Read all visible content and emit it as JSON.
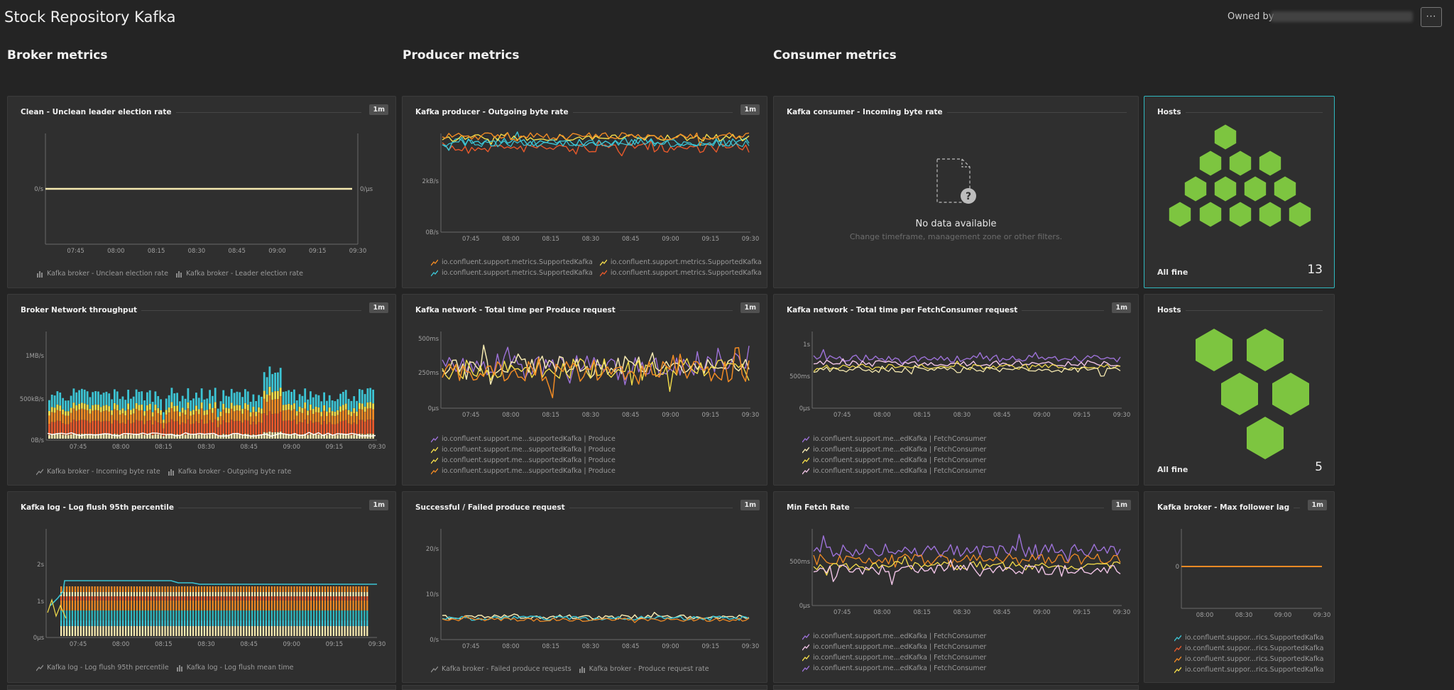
{
  "page": {
    "title": "Stock Repository Kafka",
    "owned_by_label": "Owned by",
    "more_label": "···"
  },
  "sections": [
    "Broker metrics",
    "Producer metrics",
    "Consumer metrics"
  ],
  "tiles": {
    "t1": {
      "title": "Clean - Unclean leader election rate",
      "badge": "1m",
      "y_left": [
        "0/s"
      ],
      "y_right": [
        "0/μs"
      ],
      "x": [
        "07:45",
        "08:00",
        "08:15",
        "08:30",
        "08:45",
        "09:00",
        "09:15",
        "09:30"
      ],
      "legend": [
        [
          "Kafka broker - Unclean election rate",
          "Kafka broker - Leader election rate"
        ]
      ]
    },
    "t2": {
      "title": "Kafka producer - Outgoing byte rate",
      "badge": "1m",
      "y_left": [
        "2kB/s",
        "0B/s"
      ],
      "x": [
        "07:45",
        "08:00",
        "08:15",
        "08:30",
        "08:45",
        "09:00",
        "09:15",
        "09:30"
      ],
      "legend": [
        [
          "io.confluent.support.metrics.SupportedKafka",
          "io.confluent.support.metrics.SupportedKafka"
        ],
        [
          "io.confluent.support.metrics.SupportedKafka",
          "io.confluent.support.metrics.SupportedKafka"
        ]
      ]
    },
    "t3": {
      "title": "Kafka consumer - Incoming byte rate",
      "nodata": "No data available",
      "nodata_hint": "Change timeframe, management zone or other filters."
    },
    "t4": {
      "title": "Hosts",
      "status": "All fine",
      "count": "13"
    },
    "t5": {
      "title": "Broker Network throughput",
      "badge": "1m",
      "y_left": [
        "1MB/s",
        "500kB/s",
        "0B/s"
      ],
      "x": [
        "07:45",
        "08:00",
        "08:15",
        "08:30",
        "08:45",
        "09:00",
        "09:15",
        "09:30"
      ],
      "legend": [
        [
          "Kafka broker - Incoming byte rate",
          "Kafka broker - Outgoing byte rate"
        ]
      ]
    },
    "t6": {
      "title": "Kafka network - Total time per Produce request",
      "badge": "1m",
      "y_left": [
        "500ms",
        "250ms",
        "0μs"
      ],
      "x": [
        "07:45",
        "08:00",
        "08:15",
        "08:30",
        "08:45",
        "09:00",
        "09:15",
        "09:30"
      ],
      "legend": [
        [
          "io.confluent.support.me...supportedKafka | Produce"
        ],
        [
          "io.confluent.support.me...supportedKafka | Produce"
        ],
        [
          "io.confluent.support.me...supportedKafka | Produce"
        ],
        [
          "io.confluent.support.me...supportedKafka | Produce"
        ]
      ]
    },
    "t7": {
      "title": "Kafka network - Total time per FetchConsumer request",
      "badge": "1m",
      "y_left": [
        "1s",
        "500ms",
        "0μs"
      ],
      "x": [
        "07:45",
        "08:00",
        "08:15",
        "08:30",
        "08:45",
        "09:00",
        "09:15",
        "09:30"
      ],
      "legend": [
        [
          "io.confluent.support.me...edKafka | FetchConsumer"
        ],
        [
          "io.confluent.support.me...edKafka | FetchConsumer"
        ],
        [
          "io.confluent.support.me...edKafka | FetchConsumer"
        ],
        [
          "io.confluent.support.me...edKafka | FetchConsumer"
        ]
      ]
    },
    "t8": {
      "title": "Hosts",
      "status": "All fine",
      "count": "5"
    },
    "t9": {
      "title": "Kafka log - Log flush 95th percentile",
      "badge": "1m",
      "y_left": [
        "2s",
        "1s",
        "0μs"
      ],
      "x": [
        "07:45",
        "08:00",
        "08:15",
        "08:30",
        "08:45",
        "09:00",
        "09:15",
        "09:30"
      ],
      "legend": [
        [
          "Kafka log - Log flush 95th percentile",
          "Kafka log - Log flush mean time"
        ]
      ]
    },
    "t10": {
      "title": "Successful / Failed produce request",
      "badge": "1m",
      "y_left": [
        "20/s",
        "10/s",
        "0/s"
      ],
      "x": [
        "07:45",
        "08:00",
        "08:15",
        "08:30",
        "08:45",
        "09:00",
        "09:15",
        "09:30"
      ],
      "legend": [
        [
          "Kafka broker - Failed produce requests",
          "Kafka broker - Produce request rate"
        ]
      ]
    },
    "t11": {
      "title": "Min Fetch Rate",
      "badge": "1m",
      "y_left": [
        "500ms",
        "0μs"
      ],
      "x": [
        "07:45",
        "08:00",
        "08:15",
        "08:30",
        "08:45",
        "09:00",
        "09:15",
        "09:30"
      ],
      "legend": [
        [
          "io.confluent.support.me...edKafka | FetchConsumer"
        ],
        [
          "io.confluent.support.me...edKafka | FetchConsumer"
        ],
        [
          "io.confluent.support.me...edKafka | FetchConsumer"
        ],
        [
          "io.confluent.support.me...edKafka | FetchConsumer"
        ]
      ]
    },
    "t12": {
      "title": "Kafka broker - Max follower lag",
      "badge": "1m",
      "y_left": [
        "0"
      ],
      "x": [
        "08:00",
        "08:30",
        "09:00",
        "09:30"
      ],
      "legend": [
        [
          "io.confluent.suppor...rics.SupportedKafka"
        ],
        [
          "io.confluent.suppor...rics.SupportedKafka"
        ],
        [
          "io.confluent.suppor...rics.SupportedKafka"
        ],
        [
          "io.confluent.suppor...rics.SupportedKafka"
        ]
      ]
    }
  },
  "colors": {
    "cyan": "#3cc4d4",
    "orange": "#f08a24",
    "yellow": "#f4dd4a",
    "red": "#e8592b",
    "purple": "#9d72d8",
    "pink": "#f0c4e6",
    "cream": "#f5e9b0",
    "green": "#7dc540",
    "teal": "#2fb8bf"
  },
  "chart_data": [
    {
      "type": "line",
      "title": "Clean - Unclean leader election rate",
      "x": [
        "07:45",
        "08:00",
        "08:15",
        "08:30",
        "08:45",
        "09:00",
        "09:15",
        "09:30"
      ],
      "series": [
        {
          "name": "Kafka broker - Unclean election rate",
          "values": [
            0,
            0,
            0,
            0,
            0,
            0,
            0,
            0
          ]
        },
        {
          "name": "Kafka broker - Leader election rate",
          "values": [
            0,
            0,
            0,
            0,
            0,
            0,
            0,
            0
          ]
        }
      ]
    },
    {
      "type": "line",
      "title": "Kafka producer - Outgoing byte rate",
      "ylabel": "",
      "ylim": [
        0,
        3.3
      ],
      "x": [
        "07:45",
        "08:00",
        "08:15",
        "08:30",
        "08:45",
        "09:00",
        "09:15",
        "09:30"
      ],
      "series": [
        {
          "name": "io.confluent.support.metrics.SupportedKafka",
          "values": [
            3.0,
            3.0,
            3.0,
            3.0,
            3.0,
            3.0,
            3.0,
            3.0
          ]
        },
        {
          "name": "io.confluent.support.metrics.SupportedKafka",
          "values": [
            2.9,
            2.9,
            2.9,
            2.9,
            2.9,
            2.9,
            2.9,
            2.9
          ]
        },
        {
          "name": "io.confluent.support.metrics.SupportedKafka",
          "values": [
            2.7,
            2.7,
            2.7,
            2.7,
            2.7,
            2.7,
            2.7,
            2.7
          ]
        },
        {
          "name": "io.confluent.support.metrics.SupportedKafka",
          "values": [
            2.5,
            2.5,
            2.5,
            2.5,
            2.5,
            2.5,
            2.5,
            2.5
          ]
        }
      ]
    },
    {
      "type": "bar",
      "title": "Broker Network throughput",
      "ylim": [
        0,
        1000
      ],
      "x": [
        "07:45",
        "08:00",
        "08:15",
        "08:30",
        "08:45",
        "09:00",
        "09:15",
        "09:30"
      ],
      "series": [
        {
          "name": "Kafka broker - Incoming byte rate",
          "values": [
            40,
            40,
            40,
            40,
            50,
            40,
            40,
            40
          ]
        },
        {
          "name": "Kafka broker - Outgoing byte rate",
          "values": [
            440,
            430,
            430,
            440,
            560,
            440,
            450,
            450
          ]
        }
      ]
    },
    {
      "type": "line",
      "title": "Kafka network - Total time per Produce request",
      "ylim": [
        0,
        550
      ],
      "x": [
        "07:45",
        "08:00",
        "08:15",
        "08:30",
        "08:45",
        "09:00",
        "09:15",
        "09:30"
      ],
      "series": [
        {
          "name": "io.confluent.support.me...supportedKafka | Produce",
          "values": [
            330,
            340,
            320,
            350,
            330,
            340,
            320,
            420
          ]
        },
        {
          "name": "io.confluent.support.me...supportedKafka | Produce",
          "values": [
            320,
            350,
            330,
            340,
            320,
            330,
            330,
            380
          ]
        },
        {
          "name": "io.confluent.support.me...supportedKafka | Produce",
          "values": [
            310,
            330,
            320,
            330,
            310,
            320,
            320,
            370
          ]
        },
        {
          "name": "io.confluent.support.me...supportedKafka | Produce",
          "values": [
            290,
            310,
            300,
            310,
            290,
            300,
            300,
            350
          ]
        }
      ]
    },
    {
      "type": "line",
      "title": "Kafka network - Total time per FetchConsumer request",
      "ylim": [
        0,
        1.2
      ],
      "x": [
        "07:45",
        "08:00",
        "08:15",
        "08:30",
        "08:45",
        "09:00",
        "09:15",
        "09:30"
      ],
      "series": [
        {
          "name": "io.confluent.support.me...edKafka | FetchConsumer",
          "values": [
            0.78,
            0.75,
            0.76,
            0.74,
            0.79,
            0.76,
            0.75,
            0.77
          ]
        },
        {
          "name": "io.confluent.support.me...edKafka | FetchConsumer",
          "values": [
            0.7,
            0.68,
            0.69,
            0.68,
            0.72,
            0.69,
            0.68,
            0.7
          ]
        },
        {
          "name": "io.confluent.support.me...edKafka | FetchConsumer",
          "values": [
            0.66,
            0.64,
            0.65,
            0.64,
            0.68,
            0.65,
            0.64,
            0.66
          ]
        },
        {
          "name": "io.confluent.support.me...edKafka | FetchConsumer",
          "values": [
            0.62,
            0.6,
            0.61,
            0.6,
            0.64,
            0.61,
            0.6,
            0.62
          ]
        }
      ]
    },
    {
      "type": "bar",
      "title": "Kafka log - Log flush 95th percentile",
      "ylim": [
        0,
        2.7
      ],
      "x": [
        "07:45",
        "08:00",
        "08:15",
        "08:30",
        "08:45",
        "09:00",
        "09:15",
        "09:30"
      ],
      "series": [
        {
          "name": "Kafka log - Log flush 95th percentile",
          "values": [
            1.6,
            1.6,
            1.55,
            1.45,
            1.45,
            1.45,
            1.45,
            1.45
          ]
        },
        {
          "name": "Kafka log - Log flush mean time",
          "values": [
            1.25,
            1.25,
            1.25,
            1.25,
            1.25,
            1.25,
            1.25,
            1.25
          ]
        }
      ]
    },
    {
      "type": "line",
      "title": "Successful / Failed produce request",
      "ylim": [
        0,
        25
      ],
      "x": [
        "07:45",
        "08:00",
        "08:15",
        "08:30",
        "08:45",
        "09:00",
        "09:15",
        "09:30"
      ],
      "series": [
        {
          "name": "Kafka broker - Failed produce requests",
          "values": [
            5,
            5,
            5,
            5,
            6,
            5,
            5,
            6
          ]
        },
        {
          "name": "Kafka broker - Produce request rate",
          "values": [
            5.5,
            5.5,
            5.5,
            5.5,
            6.5,
            5.5,
            5.5,
            7
          ]
        }
      ]
    },
    {
      "type": "line",
      "title": "Min Fetch Rate",
      "ylim": [
        0,
        0.85
      ],
      "x": [
        "07:45",
        "08:00",
        "08:15",
        "08:30",
        "08:45",
        "09:00",
        "09:15",
        "09:30"
      ],
      "series": [
        {
          "name": "io.confluent.support.me...edKafka | FetchConsumer",
          "values": [
            0.6,
            0.58,
            0.6,
            0.57,
            0.62,
            0.59,
            0.58,
            0.6
          ]
        },
        {
          "name": "io.confluent.support.me...edKafka | FetchConsumer",
          "values": [
            0.55,
            0.53,
            0.55,
            0.52,
            0.57,
            0.54,
            0.53,
            0.55
          ]
        },
        {
          "name": "io.confluent.support.me...edKafka | FetchConsumer",
          "values": [
            0.5,
            0.48,
            0.5,
            0.47,
            0.52,
            0.49,
            0.48,
            0.5
          ]
        },
        {
          "name": "io.confluent.support.me...edKafka | FetchConsumer",
          "values": [
            0.45,
            0.43,
            0.45,
            0.42,
            0.47,
            0.44,
            0.43,
            0.45
          ]
        }
      ]
    },
    {
      "type": "line",
      "title": "Kafka broker - Max follower lag",
      "x": [
        "08:00",
        "08:30",
        "09:00",
        "09:30"
      ],
      "series": [
        {
          "name": "io.confluent.suppor...rics.SupportedKafka",
          "values": [
            0,
            0,
            0,
            0
          ]
        },
        {
          "name": "io.confluent.suppor...rics.SupportedKafka",
          "values": [
            0,
            0,
            0,
            0
          ]
        },
        {
          "name": "io.confluent.suppor...rics.SupportedKafka",
          "values": [
            0,
            0,
            0,
            0
          ]
        },
        {
          "name": "io.confluent.suppor...rics.SupportedKafka",
          "values": [
            0,
            0,
            0,
            0
          ]
        }
      ]
    }
  ]
}
